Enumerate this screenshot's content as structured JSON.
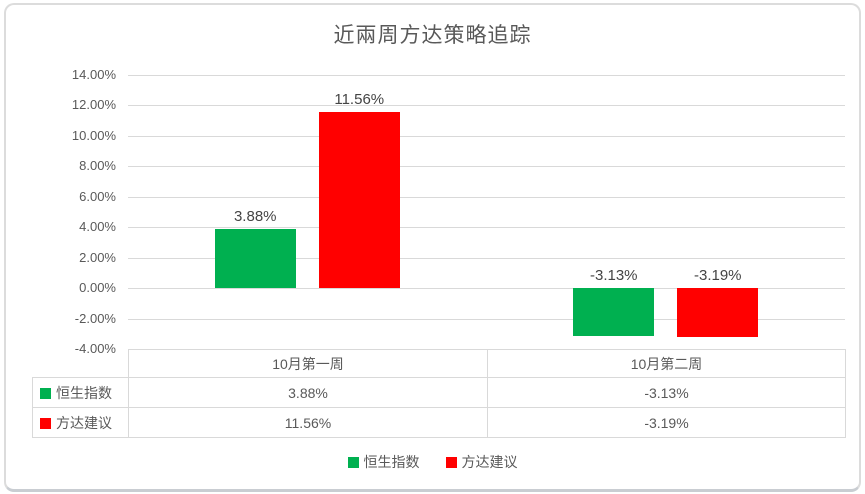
{
  "chart_data": {
    "type": "bar",
    "title": "近兩周方达策略追踪",
    "categories": [
      "10月第一周",
      "10月第二周"
    ],
    "series": [
      {
        "name": "恒生指数",
        "color": "#00B050",
        "values": [
          3.88,
          -3.13
        ],
        "labels": [
          "3.88%",
          "-3.13%"
        ]
      },
      {
        "name": "方达建议",
        "color": "#FF0000",
        "values": [
          11.56,
          -3.19
        ],
        "labels": [
          "11.56%",
          "-3.19%"
        ]
      }
    ],
    "xlabel": "",
    "ylabel": "",
    "ylim": [
      -4,
      14
    ],
    "ytick_step": 2,
    "yticks": [
      "14.00%",
      "12.00%",
      "10.00%",
      "8.00%",
      "6.00%",
      "4.00%",
      "2.00%",
      "0.00%",
      "-2.00%",
      "-4.00%"
    ],
    "grid": true,
    "legend_position": "bottom",
    "data_table_shown": true
  },
  "data_table": {
    "col_headers": [
      "10月第一周",
      "10月第二周"
    ],
    "rows": [
      {
        "label": "恒生指数",
        "swatch_color": "#00B050",
        "values": [
          "3.88%",
          "-3.13%"
        ]
      },
      {
        "label": "方达建议",
        "swatch_color": "#FF0000",
        "values": [
          "11.56%",
          "-3.19%"
        ]
      }
    ]
  },
  "legend": {
    "items": [
      {
        "label": "恒生指数",
        "color": "#00B050"
      },
      {
        "label": "方达建议",
        "color": "#FF0000"
      }
    ]
  },
  "colors": {
    "text_gray": "#595959",
    "grid_line": "#D9D9D9",
    "series_green": "#00B050",
    "series_red": "#FF0000"
  }
}
